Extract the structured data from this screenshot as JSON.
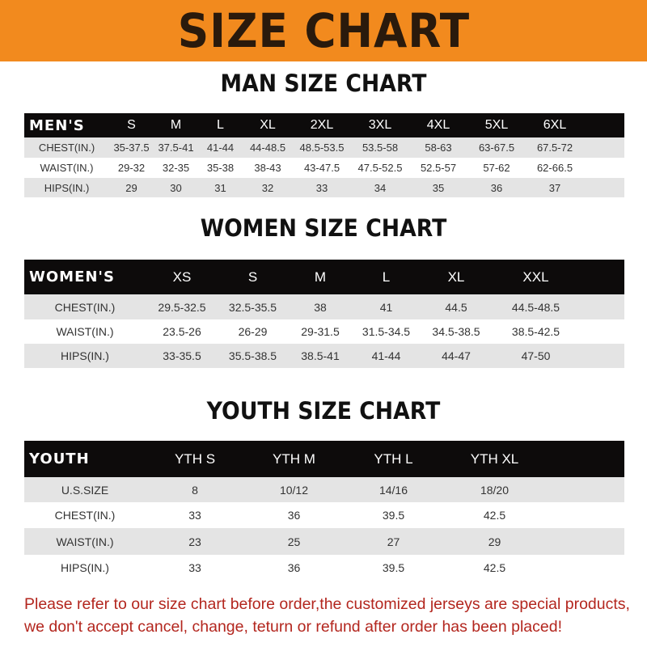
{
  "title": "SIZE CHART",
  "men": {
    "title": "MAN SIZE CHART",
    "header": [
      "MEN'S",
      "S",
      "M",
      "L",
      "XL",
      "2XL",
      "3XL",
      "4XL",
      "5XL",
      "6XL"
    ],
    "rows": [
      [
        "CHEST(IN.)",
        "35-37.5",
        "37.5-41",
        "41-44",
        "44-48.5",
        "48.5-53.5",
        "53.5-58",
        "58-63",
        "63-67.5",
        "67.5-72"
      ],
      [
        "WAIST(IN.)",
        "29-32",
        "32-35",
        "35-38",
        "38-43",
        "43-47.5",
        "47.5-52.5",
        "52.5-57",
        "57-62",
        "62-66.5"
      ],
      [
        "HIPS(IN.)",
        "29",
        "30",
        "31",
        "32",
        "33",
        "34",
        "35",
        "36",
        "37"
      ]
    ]
  },
  "women": {
    "title": "WOMEN SIZE CHART",
    "header": [
      "WOMEN'S",
      "XS",
      "S",
      "M",
      "L",
      "XL",
      "XXL"
    ],
    "rows": [
      [
        "CHEST(IN.)",
        "29.5-32.5",
        "32.5-35.5",
        "38",
        "41",
        "44.5",
        "44.5-48.5"
      ],
      [
        "WAIST(IN.)",
        "23.5-26",
        "26-29",
        "29-31.5",
        "31.5-34.5",
        "34.5-38.5",
        "38.5-42.5"
      ],
      [
        "HIPS(IN.)",
        "33-35.5",
        "35.5-38.5",
        "38.5-41",
        "41-44",
        "44-47",
        "47-50"
      ]
    ]
  },
  "youth": {
    "title": "YOUTH SIZE CHART",
    "header": [
      "YOUTH",
      "YTH S",
      "YTH M",
      "YTH L",
      "YTH XL"
    ],
    "rows": [
      [
        "U.S.SIZE",
        "8",
        "10/12",
        "14/16",
        "18/20"
      ],
      [
        "CHEST(IN.)",
        "33",
        "36",
        "39.5",
        "42.5"
      ],
      [
        "WAIST(IN.)",
        "23",
        "25",
        "27",
        "29"
      ],
      [
        "HIPS(IN.)",
        "33",
        "36",
        "39.5",
        "42.5"
      ]
    ]
  },
  "footer": [
    "Please refer to our size chart before order,the customized jerseys are special products,",
    "we don't accept cancel, change, teturn or refund after order has been placed!"
  ],
  "colors": {
    "banner": "#f28a1e",
    "header_row": "#0d0b0b",
    "shaded_row": "#e4e4e4",
    "notice": "#b3261e"
  }
}
